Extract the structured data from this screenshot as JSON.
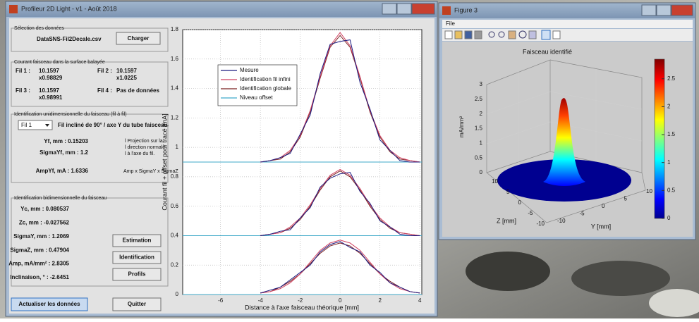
{
  "window1": {
    "title": "Profileur 2D Light - v1 - Août 2018",
    "data_selection": {
      "legend": "Sélection des données",
      "file": "DataSNS-Fil2Decale.csv",
      "button": "Charger"
    },
    "current": {
      "legend": "Courant faisceau dans la surface balayée",
      "wires": [
        {
          "label": "Fil 1 :",
          "value": "10.1597",
          "factor": "x0.98829"
        },
        {
          "label": "Fil 2 :",
          "value": "10.1597",
          "factor": "x1.0225"
        },
        {
          "label": "Fil 3 :",
          "value": "10.1597",
          "factor": "x0.98991"
        },
        {
          "label": "Fil 4 :",
          "value": "Pas de données"
        }
      ]
    },
    "one_d": {
      "legend": "Identification unidimensionnelle du faisceau (fil à fil)",
      "dropdown": "Fil 1",
      "description": "Fil incliné de 90° / axe Y du tube faisceau",
      "yf": "Yf, mm : 0.15203",
      "sigma": "SigmaYf, mm : 1.2",
      "amp": "AmpYf, mA : 1.6336",
      "note": [
        "l Projection sur la",
        "l direction normale",
        "l à l'axe du fil."
      ],
      "amp_note": "Amp x SigmaY x SigmaZ"
    },
    "two_d": {
      "legend": "Identification bidimensionnelle du faisceau",
      "results": [
        "Yc, mm : 0.080537",
        "Zc, mm : -0.027562",
        "SigmaY, mm : 1.2069",
        "SigmaZ, mm : 0.47904",
        "Amp, mA/mm² : 2.8305",
        "Inclinaison, ° : -2.6451"
      ],
      "buttons": [
        "Estimation",
        "Identification",
        "Profils"
      ]
    },
    "bottom_buttons": [
      "Actualiser les données",
      "Quitter"
    ],
    "plot": {
      "xlabel": "Distance à l'axe faisceau théorique [mm]",
      "ylabel": "Courant fil + offset pour tracé [mA]",
      "xlim": [
        -7.9,
        4.1
      ],
      "ylim": [
        0,
        1.8
      ],
      "xticks": [
        -6,
        -4,
        -2,
        0,
        2,
        4
      ],
      "yticks": [
        0,
        0.2,
        0.4,
        0.6,
        0.8,
        1,
        1.2,
        1.4,
        1.6,
        1.8
      ],
      "legend": [
        {
          "name": "Mesure",
          "color": "#1a1a80"
        },
        {
          "name": "Identification fil infini",
          "color": "#d04060"
        },
        {
          "name": "Identification globale",
          "color": "#7a2020"
        },
        {
          "name": "Niveau offset",
          "color": "#3fa9c9"
        }
      ],
      "x": [
        -4,
        -3.5,
        -3,
        -2.5,
        -2,
        -1.5,
        -1,
        -0.5,
        0,
        0.5,
        1,
        1.5,
        2,
        2.5,
        3,
        3.5,
        4
      ],
      "profiles": [
        {
          "offset": 0.9,
          "curves": [
            [
              0.9,
              0.91,
              0.93,
              0.96,
              1.09,
              1.22,
              1.5,
              1.7,
              1.72,
              1.73,
              1.44,
              1.26,
              1.05,
              0.98,
              0.91,
              0.9,
              0.9
            ],
            [
              0.9,
              0.91,
              0.93,
              0.98,
              1.08,
              1.25,
              1.48,
              1.69,
              1.78,
              1.69,
              1.48,
              1.25,
              1.08,
              0.98,
              0.93,
              0.91,
              0.9
            ],
            [
              0.9,
              0.91,
              0.92,
              0.97,
              1.07,
              1.24,
              1.47,
              1.68,
              1.76,
              1.68,
              1.47,
              1.24,
              1.07,
              0.97,
              0.92,
              0.91,
              0.9
            ]
          ]
        },
        {
          "offset": 0.4,
          "curves": [
            [
              0.4,
              0.41,
              0.43,
              0.44,
              0.52,
              0.59,
              0.73,
              0.79,
              0.82,
              0.83,
              0.7,
              0.62,
              0.5,
              0.46,
              0.41,
              0.4,
              0.4
            ],
            [
              0.4,
              0.41,
              0.42,
              0.46,
              0.52,
              0.61,
              0.72,
              0.81,
              0.85,
              0.81,
              0.72,
              0.61,
              0.52,
              0.46,
              0.42,
              0.41,
              0.4
            ],
            [
              0.4,
              0.41,
              0.42,
              0.45,
              0.51,
              0.6,
              0.71,
              0.8,
              0.84,
              0.8,
              0.71,
              0.6,
              0.51,
              0.45,
              0.42,
              0.41,
              0.4
            ]
          ]
        },
        {
          "offset": 0,
          "curves": [
            [
              0.01,
              0.03,
              0.05,
              0.1,
              0.15,
              0.2,
              0.29,
              0.34,
              0.36,
              0.32,
              0.29,
              0.2,
              0.15,
              0.08,
              0.05,
              0.02,
              0.01
            ],
            [
              0.01,
              0.02,
              0.04,
              0.08,
              0.14,
              0.22,
              0.3,
              0.35,
              0.37,
              0.35,
              0.3,
              0.22,
              0.14,
              0.08,
              0.04,
              0.02,
              0.01
            ],
            [
              0.01,
              0.02,
              0.05,
              0.09,
              0.14,
              0.21,
              0.28,
              0.33,
              0.35,
              0.33,
              0.28,
              0.21,
              0.14,
              0.09,
              0.05,
              0.02,
              0.01
            ]
          ]
        }
      ]
    }
  },
  "window2": {
    "title": "Figure 3",
    "menu": "File",
    "plot_title": "Faisceau identifié",
    "zlabel": "mA/mm²",
    "xlabel": "Z [mm]",
    "ylabel": "Y [mm]",
    "zticks": [
      0,
      0.5,
      1,
      1.5,
      2,
      2.5,
      3
    ],
    "z_mm_ticks": [
      10,
      5,
      0,
      -5,
      -10
    ],
    "y_mm_ticks": [
      -10,
      -5,
      0,
      5,
      10
    ],
    "clim": [
      0,
      2.85
    ],
    "colorbar_ticks": [
      0,
      0.5,
      1,
      1.5,
      2,
      2.5
    ]
  }
}
